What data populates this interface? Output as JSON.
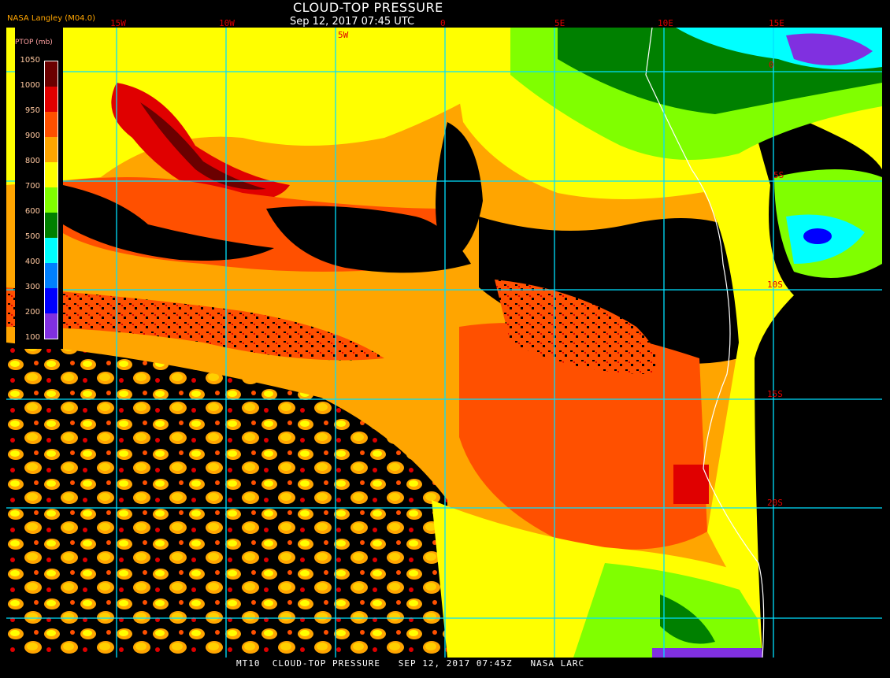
{
  "header": {
    "title": "CLOUD-TOP PRESSURE",
    "subtitle": "Sep 12, 2017 07:45 UTC",
    "credit": "NASA Langley (M04.0)"
  },
  "map": {
    "longitude_labels": [
      "15W",
      "10W",
      "5W",
      "0",
      "5E",
      "10E",
      "15E"
    ],
    "latitude_labels": [
      "0",
      "5S",
      "10S",
      "15S",
      "20S"
    ],
    "grid_color": "#00e0ff",
    "coastline_color": "#ffffff",
    "clear_sky_color": "#000000"
  },
  "legend": {
    "title": "PTOP (mb)",
    "ticks": [
      "1050",
      "1000",
      "950",
      "900",
      "800",
      "700",
      "600",
      "500",
      "400",
      "300",
      "200",
      "100"
    ],
    "colors": [
      "#6b0000",
      "#e00000",
      "#ff5000",
      "#ffa500",
      "#ffff00",
      "#80ff00",
      "#008000",
      "#00ffff",
      "#0080ff",
      "#0000ff",
      "#8030e0"
    ]
  },
  "footer": {
    "text": "MT10  CLOUD-TOP PRESSURE   SEP 12, 2017 07:45Z   NASA LARC"
  }
}
